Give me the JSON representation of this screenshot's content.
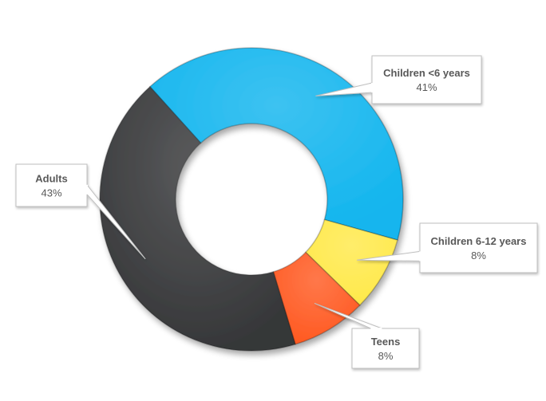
{
  "chart_data": {
    "type": "pie",
    "variant": "donut",
    "title": "",
    "categories": [
      "Children <6 years",
      "Children 6-12 years",
      "Teens",
      "Adults"
    ],
    "values": [
      41,
      8,
      8,
      43
    ],
    "value_labels": [
      "41%",
      "8%",
      "8%",
      "43%"
    ],
    "colors": [
      "#12B5EE",
      "#FFE94A",
      "#FF5A22",
      "#363739"
    ],
    "legend": "none",
    "data_labels": "callouts with category name and percentage"
  }
}
